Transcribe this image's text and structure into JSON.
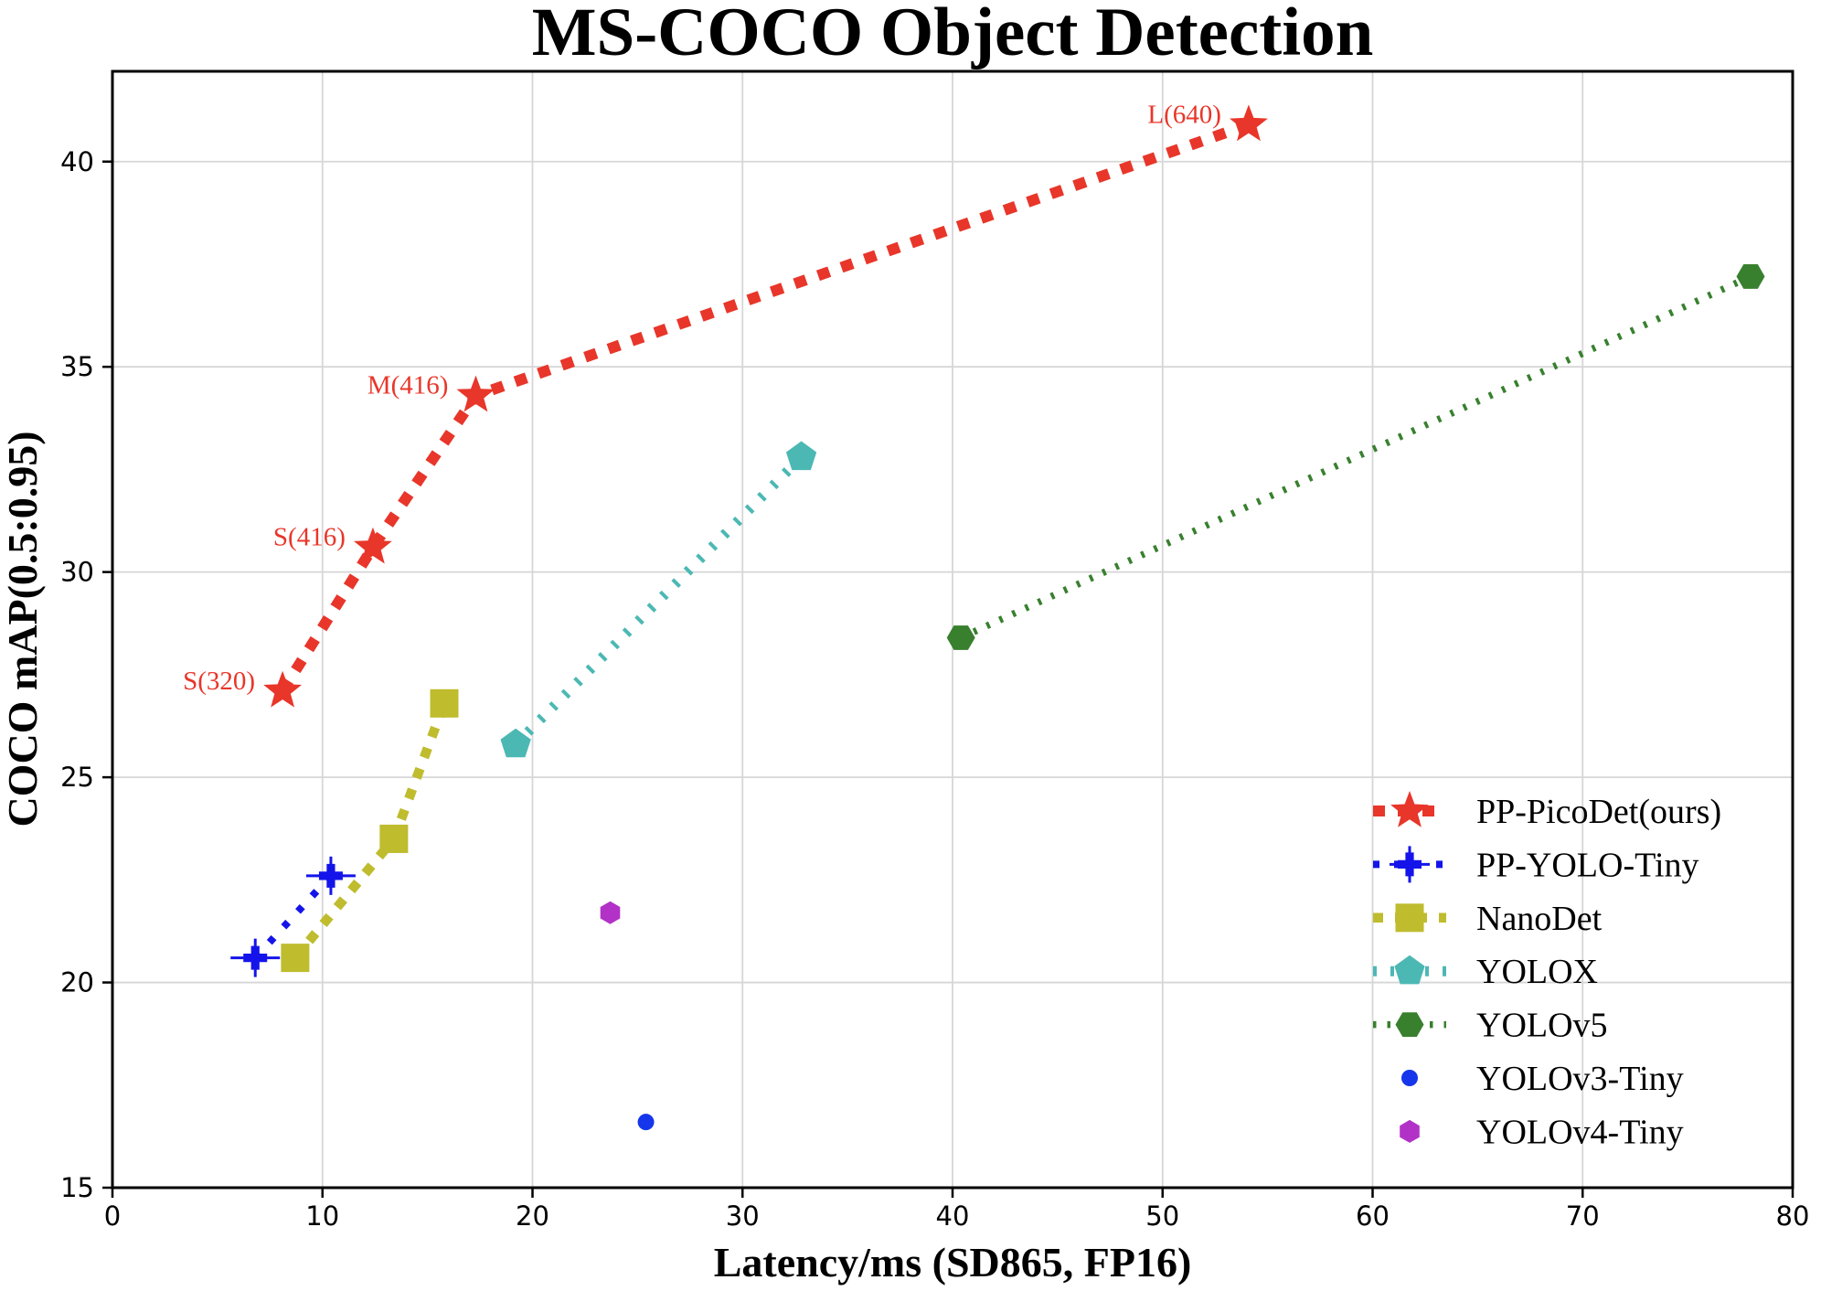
{
  "chart_data": {
    "type": "line",
    "title": "MS-COCO Object Detection",
    "xlabel": "Latency/ms (SD865, FP16)",
    "ylabel": "COCO mAP(0.5:0.95)",
    "xlim": [
      0,
      80
    ],
    "ylim": [
      15,
      42.2
    ],
    "xticks": [
      0,
      10,
      20,
      30,
      40,
      50,
      60,
      70,
      80
    ],
    "yticks": [
      15,
      20,
      25,
      30,
      35,
      40
    ],
    "grid": true,
    "grid_color": "#d6d6d6",
    "legend_position": "inside lower right, no frame",
    "annotation_color": "#e8362a",
    "series": [
      {
        "name": "PP-PicoDet(ours)",
        "color": "#e8362a",
        "marker": "star",
        "marker_radius": 22,
        "line": "dashed",
        "line_width": 12,
        "dash": [
          13,
          14
        ],
        "points": [
          {
            "x": 8.1,
            "y": 27.1,
            "label": "S(320)"
          },
          {
            "x": 12.4,
            "y": 30.6,
            "label": "S(416)"
          },
          {
            "x": 17.3,
            "y": 34.3,
            "label": "M(416)"
          },
          {
            "x": 54.1,
            "y": 40.9,
            "label": "L(640)"
          }
        ]
      },
      {
        "name": "PP-YOLO-Tiny",
        "color": "#1414ea",
        "marker": "plus",
        "marker_radius": 13,
        "line": "dashed",
        "line_width": 8,
        "dash": [
          7,
          16
        ],
        "error_bars": true,
        "points": [
          {
            "x": 6.8,
            "y": 20.6
          },
          {
            "x": 10.4,
            "y": 22.6
          }
        ]
      },
      {
        "name": "NanoDet",
        "color": "#bfbc2e",
        "marker": "square",
        "marker_radius": 15.5,
        "line": "dashed",
        "line_width": 10.5,
        "dash": [
          11,
          13
        ],
        "points": [
          {
            "x": 8.7,
            "y": 20.6
          },
          {
            "x": 13.4,
            "y": 23.5
          },
          {
            "x": 15.8,
            "y": 26.8
          }
        ]
      },
      {
        "name": "YOLOX",
        "color": "#4cb8b4",
        "marker": "pentagon",
        "marker_radius": 17.5,
        "line": "dotted",
        "line_width": 11,
        "dash": [
          4,
          15
        ],
        "points": [
          {
            "x": 19.2,
            "y": 25.8
          },
          {
            "x": 32.8,
            "y": 32.8
          }
        ]
      },
      {
        "name": "YOLOv5",
        "color": "#38802e",
        "marker": "hexagon-flat",
        "marker_radius": 15.5,
        "line": "dotted",
        "line_width": 7.5,
        "dash": [
          3.5,
          12
        ],
        "points": [
          {
            "x": 40.4,
            "y": 28.4
          },
          {
            "x": 78.0,
            "y": 37.2
          }
        ]
      },
      {
        "name": "YOLOv3-Tiny",
        "color": "#1536ea",
        "marker": "circle",
        "marker_radius": 9,
        "line": "none",
        "points": [
          {
            "x": 25.4,
            "y": 16.6
          }
        ]
      },
      {
        "name": "YOLOv4-Tiny",
        "color": "#b232c8",
        "marker": "hexagon",
        "marker_radius": 12.5,
        "line": "none",
        "points": [
          {
            "x": 23.7,
            "y": 21.7
          }
        ]
      }
    ]
  }
}
